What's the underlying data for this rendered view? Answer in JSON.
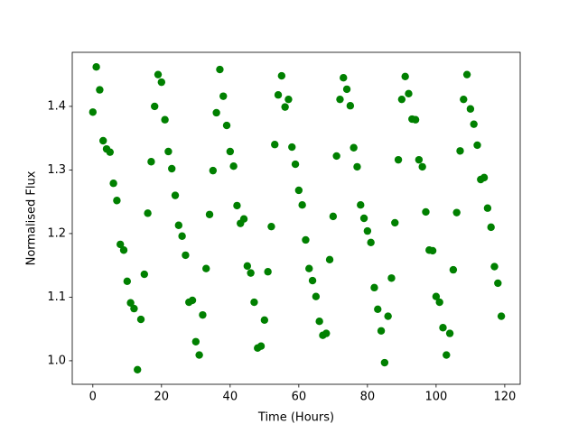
{
  "chart_data": {
    "type": "scatter",
    "xlabel": "Time (Hours)",
    "ylabel": "Normalised Flux",
    "color": "#008000",
    "x": [
      0,
      1,
      2,
      3,
      4,
      5,
      6,
      7,
      8,
      9,
      10,
      11,
      12,
      13,
      14,
      15,
      16,
      17,
      18,
      19,
      20,
      21,
      22,
      23,
      24,
      25,
      26,
      27,
      28,
      29,
      30,
      31,
      32,
      33,
      34,
      35,
      36,
      37,
      38,
      39,
      40,
      41,
      42,
      43,
      44,
      45,
      46,
      47,
      48,
      49,
      50,
      51,
      52,
      53,
      54,
      55,
      56,
      57,
      58,
      59,
      60,
      61,
      62,
      63,
      64,
      65,
      66,
      67,
      68,
      69,
      70,
      71,
      72,
      73,
      74,
      75,
      76,
      77,
      78,
      79,
      80,
      81,
      82,
      83,
      84,
      85,
      86,
      87,
      88,
      89,
      90,
      91,
      92,
      93,
      94,
      95,
      96,
      97,
      98,
      99,
      100,
      101,
      102,
      103,
      104,
      105,
      106,
      107,
      108,
      109,
      110,
      111,
      112,
      113,
      114,
      115,
      116,
      117,
      118,
      119
    ],
    "values": [
      1.391,
      1.462,
      1.426,
      1.346,
      1.333,
      1.328,
      1.279,
      1.252,
      1.183,
      1.174,
      1.125,
      1.091,
      1.082,
      0.986,
      1.065,
      1.136,
      1.232,
      1.313,
      1.4,
      1.45,
      1.438,
      1.379,
      1.329,
      1.302,
      1.26,
      1.213,
      1.196,
      1.166,
      1.092,
      1.095,
      1.03,
      1.009,
      1.072,
      1.145,
      1.23,
      1.299,
      1.39,
      1.458,
      1.416,
      1.37,
      1.329,
      1.306,
      1.244,
      1.216,
      1.223,
      1.149,
      1.138,
      1.092,
      1.02,
      1.023,
      1.064,
      1.14,
      1.211,
      1.34,
      1.418,
      1.448,
      1.399,
      1.411,
      1.336,
      1.309,
      1.268,
      1.245,
      1.19,
      1.145,
      1.126,
      1.101,
      1.062,
      1.04,
      1.043,
      1.159,
      1.227,
      1.322,
      1.411,
      1.445,
      1.427,
      1.401,
      1.335,
      1.305,
      1.245,
      1.224,
      1.204,
      1.186,
      1.115,
      1.081,
      1.047,
      0.997,
      1.07,
      1.13,
      1.217,
      1.316,
      1.411,
      1.447,
      1.42,
      1.38,
      1.379,
      1.316,
      1.305,
      1.234,
      1.174,
      1.173,
      1.101,
      1.092,
      1.052,
      1.009,
      1.043,
      1.143,
      1.233,
      1.33,
      1.411,
      1.45,
      1.396,
      1.372,
      1.339,
      1.285,
      1.288,
      1.24,
      1.21,
      1.148,
      1.122,
      1.07
    ],
    "xlim": [
      -6,
      124.5
    ],
    "ylim": [
      0.963,
      1.485
    ],
    "xticks": [
      0,
      20,
      40,
      60,
      80,
      100,
      120
    ],
    "yticks": [
      {
        "value": 1,
        "label": "1.0"
      },
      1.1,
      1.2,
      1.3,
      1.4
    ]
  }
}
